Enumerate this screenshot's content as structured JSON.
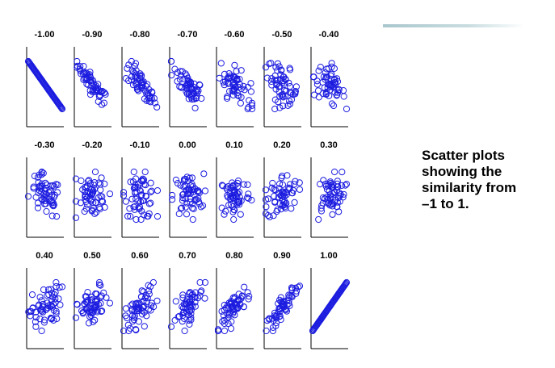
{
  "caption": {
    "lines": [
      "Scatter plots",
      "showing the",
      "similarity from",
      "–1 to 1."
    ]
  },
  "colors": {
    "marker": "#1c1ce0",
    "accent_line": "#a9c7cd",
    "axes": "#000000"
  },
  "chart_data": {
    "type": "scatter",
    "layout": "small-multiples",
    "marker": "open-circle",
    "panels": [
      {
        "title": "-1.00",
        "correlation": -1.0
      },
      {
        "title": "-0.90",
        "correlation": -0.9
      },
      {
        "title": "-0.80",
        "correlation": -0.8
      },
      {
        "title": "-0.70",
        "correlation": -0.7
      },
      {
        "title": "-0.60",
        "correlation": -0.6
      },
      {
        "title": "-0.50",
        "correlation": -0.5
      },
      {
        "title": "-0.40",
        "correlation": -0.4
      },
      {
        "title": "-0.30",
        "correlation": -0.3
      },
      {
        "title": "-0.20",
        "correlation": -0.2
      },
      {
        "title": "-0.10",
        "correlation": -0.1
      },
      {
        "title": "0.00",
        "correlation": 0.0
      },
      {
        "title": "0.10",
        "correlation": 0.1
      },
      {
        "title": "0.20",
        "correlation": 0.2
      },
      {
        "title": "0.30",
        "correlation": 0.3
      },
      {
        "title": "0.40",
        "correlation": 0.4
      },
      {
        "title": "0.50",
        "correlation": 0.5
      },
      {
        "title": "0.60",
        "correlation": 0.6
      },
      {
        "title": "0.70",
        "correlation": 0.7
      },
      {
        "title": "0.80",
        "correlation": 0.8
      },
      {
        "title": "0.90",
        "correlation": 0.9
      },
      {
        "title": "1.00",
        "correlation": 1.0
      }
    ],
    "points_per_panel": 60,
    "title": "",
    "xlabel": "",
    "ylabel": "",
    "grid": false
  }
}
